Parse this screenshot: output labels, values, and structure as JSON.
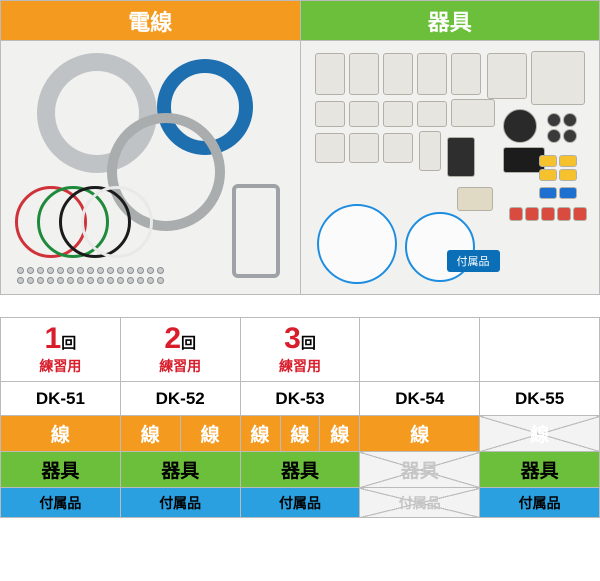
{
  "top_headers": {
    "wire": "電線",
    "device": "器具"
  },
  "colors": {
    "orange": "#f39a1f",
    "green": "#6bbf3a",
    "blue": "#2aa0e0",
    "red": "#d81d2b",
    "black": "#000000",
    "gray_disabled_text": "#c6c6c6"
  },
  "device_badge": "付属品",
  "wire_rings": {
    "red": "#d0323a",
    "green": "#1e8a3b",
    "black": "#1b1b1b",
    "white": "#e9e9e9",
    "coil_gray": "#bfc3c6",
    "coil_blue": "#1d6fb0",
    "thick_gray": "#a9adad"
  },
  "practice_header": {
    "items": [
      {
        "n": "1",
        "kai": "回",
        "sub": "練習用"
      },
      {
        "n": "2",
        "kai": "回",
        "sub": "練習用"
      },
      {
        "n": "3",
        "kai": "回",
        "sub": "練習用"
      }
    ]
  },
  "skus": [
    "DK-51",
    "DK-52",
    "DK-53",
    "DK-54",
    "DK-55"
  ],
  "rows": {
    "sen": {
      "label": "線",
      "cells": [
        {
          "count": 1,
          "enabled": true
        },
        {
          "count": 2,
          "enabled": true
        },
        {
          "count": 3,
          "enabled": true
        },
        {
          "count": 1,
          "enabled": true
        },
        {
          "count": 1,
          "enabled": false
        }
      ]
    },
    "kigu": {
      "label": "器具",
      "cells": [
        {
          "enabled": true
        },
        {
          "enabled": true
        },
        {
          "enabled": true
        },
        {
          "enabled": false
        },
        {
          "enabled": true
        }
      ]
    },
    "acc": {
      "label": "付属品",
      "cells": [
        {
          "enabled": true
        },
        {
          "enabled": true
        },
        {
          "enabled": true
        },
        {
          "enabled": false
        },
        {
          "enabled": true
        }
      ]
    }
  }
}
